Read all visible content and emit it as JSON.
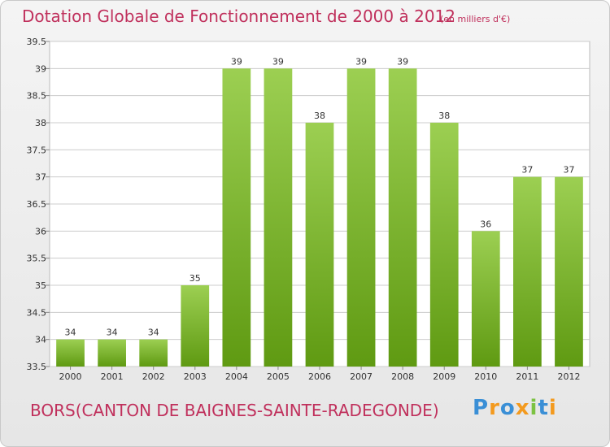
{
  "header": {
    "title": "Dotation Globale de Fonctionnement de 2000 à 2012",
    "subtitle": "(en milliers d'€)"
  },
  "footer": {
    "location": "BORS(CANTON DE BAIGNES-SAINTE-RADEGONDE)",
    "brand": "Proxiti",
    "brand_letter_colors": [
      "#3a8fd6",
      "#f39a1e",
      "#3a8fd6",
      "#f39a1e",
      "#7cc242",
      "#3a8fd6",
      "#f39a1e"
    ]
  },
  "colors": {
    "title": "#c0305c",
    "bar_light": "#9ccf52",
    "bar_dark": "#5f9a12",
    "grid": "#cccccc",
    "plot_bg": "#ffffff"
  },
  "chart_data": {
    "type": "bar",
    "title": "Dotation Globale de Fonctionnement de 2000 à 2012",
    "subtitle": "(en milliers d'€)",
    "categories": [
      "2000",
      "2001",
      "2002",
      "2003",
      "2004",
      "2005",
      "2006",
      "2007",
      "2008",
      "2009",
      "2010",
      "2011",
      "2012"
    ],
    "values": [
      34,
      34,
      34,
      35,
      39,
      39,
      38,
      39,
      39,
      38,
      36,
      37,
      37
    ],
    "data_labels": [
      "34",
      "34",
      "34",
      "35",
      "39",
      "39",
      "38",
      "39",
      "39",
      "38",
      "36",
      "37",
      "37"
    ],
    "ylim": [
      33.5,
      39.5
    ],
    "yticks": [
      "33.5",
      "34",
      "34.5",
      "35",
      "35.5",
      "36",
      "36.5",
      "37",
      "37.5",
      "38",
      "38.5",
      "39",
      "39.5"
    ],
    "grid": true,
    "xlabel": "",
    "ylabel": ""
  }
}
